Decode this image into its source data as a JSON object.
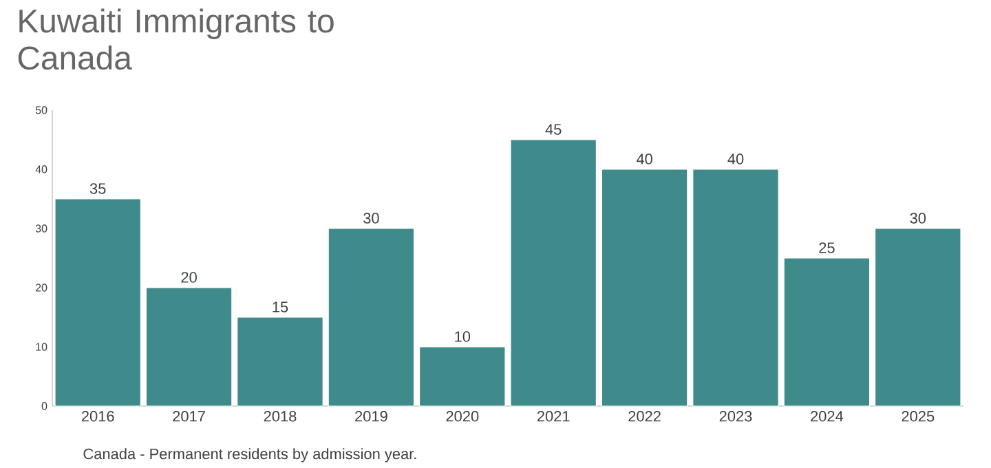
{
  "chart_data": {
    "type": "bar",
    "title": "Kuwaiti Immigrants to Canada",
    "categories": [
      "2016",
      "2017",
      "2018",
      "2019",
      "2020",
      "2021",
      "2022",
      "2023",
      "2024",
      "2025"
    ],
    "values": [
      35,
      20,
      15,
      30,
      10,
      45,
      40,
      40,
      25,
      30
    ],
    "color": "#3f8b8b",
    "ylim": [
      0,
      50
    ],
    "yticks": [
      0,
      10,
      20,
      30,
      40,
      50
    ],
    "data_labels": true,
    "grid": false,
    "annotations": [
      "Canada - Permanent residents by admission year."
    ]
  }
}
